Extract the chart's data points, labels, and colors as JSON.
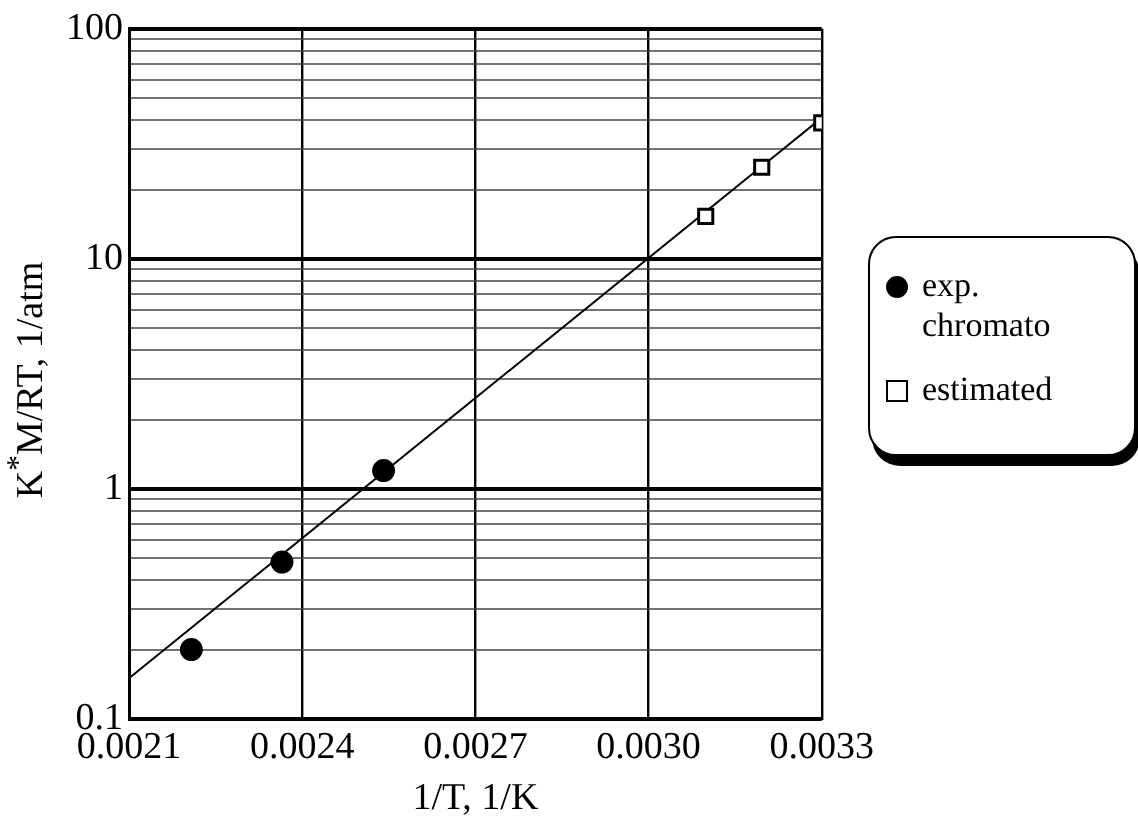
{
  "chart_data": {
    "type": "scatter",
    "xlabel": "1/T, 1/K",
    "ylabel": "K$^{*}$M/RT, 1/atm",
    "log": "y",
    "xlim": [
      0.0021,
      0.0033
    ],
    "xticks": [
      0.0021,
      0.0024,
      0.0027,
      {
        "value": 0.003,
        "label": "0.0030"
      },
      0.0033
    ],
    "ylim": [
      0.1,
      100
    ],
    "yticks": [
      0.1,
      {
        "value": 0.2,
        "label": null
      },
      {
        "value": 0.3,
        "label": null
      },
      {
        "value": 0.4,
        "label": null
      },
      {
        "value": 0.5,
        "label": null
      },
      {
        "value": 0.6,
        "label": null
      },
      {
        "value": 0.7,
        "label": null
      },
      {
        "value": 0.8,
        "label": null
      },
      {
        "value": 0.9,
        "label": null
      },
      1,
      {
        "value": 2,
        "label": null
      },
      {
        "value": 3,
        "label": null
      },
      {
        "value": 4,
        "label": null
      },
      {
        "value": 5,
        "label": null
      },
      {
        "value": 6,
        "label": null
      },
      {
        "value": 7,
        "label": null
      },
      {
        "value": 8,
        "label": null
      },
      {
        "value": 9,
        "label": null
      },
      10,
      {
        "value": 20,
        "label": null
      },
      {
        "value": 30,
        "label": null
      },
      {
        "value": 40,
        "label": null
      },
      {
        "value": 50,
        "label": null
      },
      {
        "value": 60,
        "label": null
      },
      {
        "value": 70,
        "label": null
      },
      {
        "value": 80,
        "label": null
      },
      {
        "value": 90,
        "label": null
      },
      100
    ],
    "grid": true,
    "legend": "right",
    "series": [
      {
        "name": "exp. chromato",
        "color": "#000000",
        "marker": "circle",
        "x": [
          0.002208,
          0.002365,
          0.002541
        ],
        "values": [
          0.2,
          0.48,
          1.2
        ]
      },
      {
        "name": "estimated",
        "color": "#000000",
        "marker": "square",
        "x": [
          0.003099,
          0.003196,
          0.0033
        ],
        "values": [
          15.3,
          25,
          39
        ]
      },
      {
        "type": "line",
        "color": "#000000",
        "marker": "none",
        "x": [
          0.0021,
          0.0033
        ],
        "values": [
          0.15,
          41
        ]
      }
    ]
  }
}
